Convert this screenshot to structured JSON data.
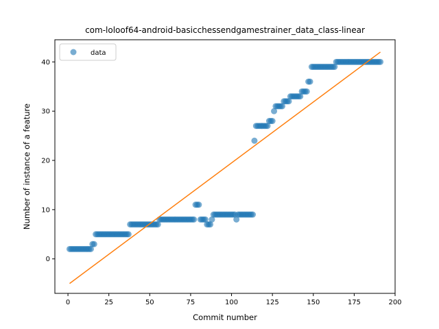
{
  "chart_data": {
    "type": "scatter",
    "title": "com-loloof64-android-basicchessendgamestrainer_data_class-linear",
    "xlabel": "Commit number",
    "ylabel": "Number of instance of a feature",
    "xlim": [
      -8,
      200
    ],
    "ylim": [
      -7,
      44.5
    ],
    "xticks": [
      0,
      25,
      50,
      75,
      100,
      125,
      150,
      175,
      200
    ],
    "yticks": [
      0,
      10,
      20,
      30,
      40
    ],
    "grid": false,
    "legend": {
      "placement": "top-left",
      "entries": [
        "data"
      ]
    },
    "colors": {
      "data": "#1f77b4",
      "fit": "#ff7f0e"
    },
    "series": [
      {
        "name": "data",
        "kind": "points",
        "points": [
          [
            1,
            2
          ],
          [
            2,
            2
          ],
          [
            3,
            2
          ],
          [
            4,
            2
          ],
          [
            5,
            2
          ],
          [
            6,
            2
          ],
          [
            7,
            2
          ],
          [
            8,
            2
          ],
          [
            9,
            2
          ],
          [
            10,
            2
          ],
          [
            11,
            2
          ],
          [
            12,
            2
          ],
          [
            13,
            2
          ],
          [
            14,
            2
          ],
          [
            15,
            3
          ],
          [
            16,
            3
          ],
          [
            17,
            5
          ],
          [
            18,
            5
          ],
          [
            19,
            5
          ],
          [
            20,
            5
          ],
          [
            21,
            5
          ],
          [
            22,
            5
          ],
          [
            23,
            5
          ],
          [
            24,
            5
          ],
          [
            25,
            5
          ],
          [
            26,
            5
          ],
          [
            27,
            5
          ],
          [
            28,
            5
          ],
          [
            29,
            5
          ],
          [
            30,
            5
          ],
          [
            31,
            5
          ],
          [
            32,
            5
          ],
          [
            33,
            5
          ],
          [
            34,
            5
          ],
          [
            35,
            5
          ],
          [
            36,
            5
          ],
          [
            37,
            5
          ],
          [
            38,
            7
          ],
          [
            39,
            7
          ],
          [
            40,
            7
          ],
          [
            41,
            7
          ],
          [
            42,
            7
          ],
          [
            43,
            7
          ],
          [
            44,
            7
          ],
          [
            45,
            7
          ],
          [
            46,
            7
          ],
          [
            47,
            7
          ],
          [
            48,
            7
          ],
          [
            49,
            7
          ],
          [
            50,
            7
          ],
          [
            51,
            7
          ],
          [
            52,
            7
          ],
          [
            53,
            7
          ],
          [
            54,
            7
          ],
          [
            55,
            7
          ],
          [
            56,
            8
          ],
          [
            57,
            8
          ],
          [
            58,
            8
          ],
          [
            59,
            8
          ],
          [
            60,
            8
          ],
          [
            61,
            8
          ],
          [
            62,
            8
          ],
          [
            63,
            8
          ],
          [
            64,
            8
          ],
          [
            65,
            8
          ],
          [
            66,
            8
          ],
          [
            67,
            8
          ],
          [
            68,
            8
          ],
          [
            69,
            8
          ],
          [
            70,
            8
          ],
          [
            71,
            8
          ],
          [
            72,
            8
          ],
          [
            73,
            8
          ],
          [
            74,
            8
          ],
          [
            75,
            8
          ],
          [
            76,
            8
          ],
          [
            77,
            8
          ],
          [
            78,
            11
          ],
          [
            79,
            11
          ],
          [
            80,
            11
          ],
          [
            81,
            8
          ],
          [
            82,
            8
          ],
          [
            83,
            8
          ],
          [
            84,
            8
          ],
          [
            85,
            7
          ],
          [
            86,
            7
          ],
          [
            87,
            7
          ],
          [
            88,
            8
          ],
          [
            89,
            9
          ],
          [
            90,
            9
          ],
          [
            91,
            9
          ],
          [
            92,
            9
          ],
          [
            93,
            9
          ],
          [
            94,
            9
          ],
          [
            95,
            9
          ],
          [
            96,
            9
          ],
          [
            97,
            9
          ],
          [
            98,
            9
          ],
          [
            99,
            9
          ],
          [
            100,
            9
          ],
          [
            101,
            9
          ],
          [
            102,
            9
          ],
          [
            103,
            8
          ],
          [
            104,
            9
          ],
          [
            105,
            9
          ],
          [
            106,
            9
          ],
          [
            107,
            9
          ],
          [
            108,
            9
          ],
          [
            109,
            9
          ],
          [
            110,
            9
          ],
          [
            111,
            9
          ],
          [
            112,
            9
          ],
          [
            113,
            9
          ],
          [
            114,
            24
          ],
          [
            115,
            27
          ],
          [
            116,
            27
          ],
          [
            117,
            27
          ],
          [
            118,
            27
          ],
          [
            119,
            27
          ],
          [
            120,
            27
          ],
          [
            121,
            27
          ],
          [
            122,
            27
          ],
          [
            123,
            28
          ],
          [
            124,
            28
          ],
          [
            125,
            28
          ],
          [
            126,
            30
          ],
          [
            127,
            31
          ],
          [
            128,
            31
          ],
          [
            129,
            31
          ],
          [
            130,
            31
          ],
          [
            131,
            31
          ],
          [
            132,
            32
          ],
          [
            133,
            32
          ],
          [
            134,
            32
          ],
          [
            135,
            32
          ],
          [
            136,
            33
          ],
          [
            137,
            33
          ],
          [
            138,
            33
          ],
          [
            139,
            33
          ],
          [
            140,
            33
          ],
          [
            141,
            33
          ],
          [
            142,
            33
          ],
          [
            143,
            34
          ],
          [
            144,
            34
          ],
          [
            145,
            34
          ],
          [
            146,
            34
          ],
          [
            147,
            36
          ],
          [
            148,
            36
          ],
          [
            149,
            39
          ],
          [
            150,
            39
          ],
          [
            151,
            39
          ],
          [
            152,
            39
          ],
          [
            153,
            39
          ],
          [
            154,
            39
          ],
          [
            155,
            39
          ],
          [
            156,
            39
          ],
          [
            157,
            39
          ],
          [
            158,
            39
          ],
          [
            159,
            39
          ],
          [
            160,
            39
          ],
          [
            161,
            39
          ],
          [
            162,
            39
          ],
          [
            163,
            39
          ],
          [
            164,
            40
          ],
          [
            165,
            40
          ],
          [
            166,
            40
          ],
          [
            167,
            40
          ],
          [
            168,
            40
          ],
          [
            169,
            40
          ],
          [
            170,
            40
          ],
          [
            171,
            40
          ],
          [
            172,
            40
          ],
          [
            173,
            40
          ],
          [
            174,
            40
          ],
          [
            175,
            40
          ],
          [
            176,
            40
          ],
          [
            177,
            40
          ],
          [
            178,
            40
          ],
          [
            179,
            40
          ],
          [
            180,
            40
          ],
          [
            181,
            40
          ],
          [
            182,
            40
          ],
          [
            183,
            40
          ],
          [
            184,
            40
          ],
          [
            185,
            40
          ],
          [
            186,
            40
          ],
          [
            187,
            40
          ],
          [
            188,
            40
          ],
          [
            189,
            40
          ],
          [
            190,
            40
          ],
          [
            191,
            40
          ]
        ]
      },
      {
        "kind": "line",
        "points": [
          [
            1,
            -5
          ],
          [
            191,
            42
          ]
        ]
      }
    ]
  }
}
